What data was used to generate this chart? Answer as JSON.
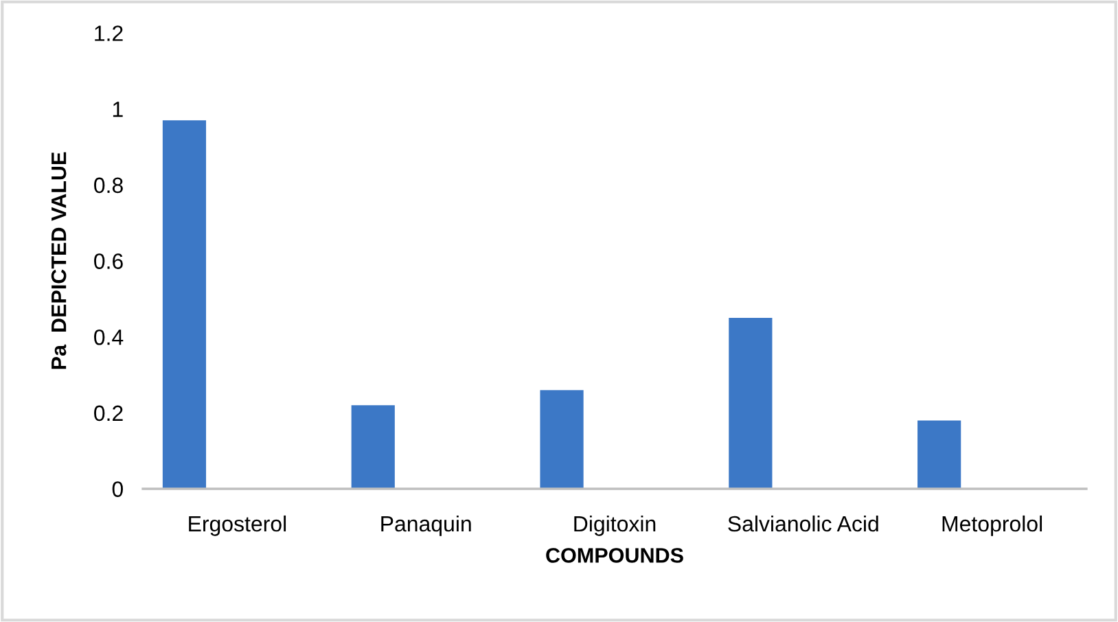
{
  "chart_data": {
    "type": "bar",
    "xlabel": "COMPOUNDS",
    "ylabel": "Pa  DEPICTED VALUE",
    "categories": [
      "Ergosterol",
      "Panaquin",
      "Digitoxin",
      "Salvianolic Acid",
      "Metoprolol"
    ],
    "values": [
      0.97,
      0.22,
      0.26,
      0.45,
      0.18
    ],
    "color": "#3c78c6",
    "ylim": [
      0,
      1.2
    ],
    "yticks": [
      0,
      0.2,
      0.4,
      0.6,
      0.8,
      1,
      1.2
    ],
    "grid": false
  }
}
